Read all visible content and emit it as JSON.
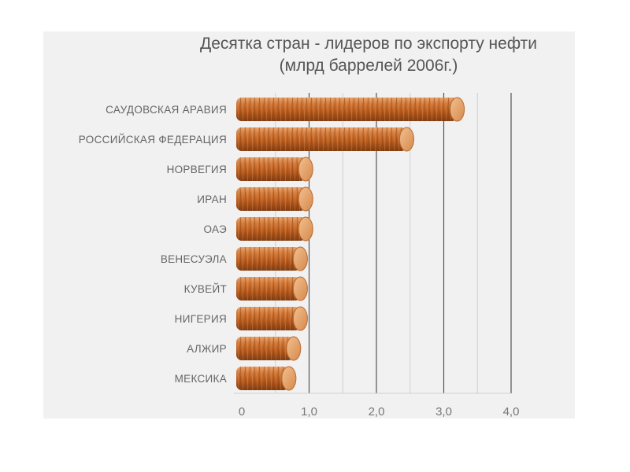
{
  "chart_data": {
    "type": "bar",
    "orientation": "horizontal",
    "title": "Десятка стран - лидеров по экспорту нефти",
    "subtitle": "(млрд баррелей 2006г.)",
    "categories": [
      "САУДОВСКАЯ АРАВИЯ",
      "РОССИЙСКАЯ ФЕДЕРАЦИЯ",
      "НОРВЕГИЯ",
      "ИРАН",
      "ОАЭ",
      "ВЕНЕСУЭЛА",
      "КУВЕЙТ",
      "НИГЕРИЯ",
      "АЛЖИР",
      "МЕКСИКА"
    ],
    "values": [
      3.2,
      2.45,
      0.95,
      0.95,
      0.95,
      0.87,
      0.87,
      0.87,
      0.77,
      0.7
    ],
    "xlim": [
      0,
      4
    ],
    "xticks": [
      0,
      1,
      2,
      3,
      4
    ],
    "xtick_labels": [
      "0",
      "1,0",
      "2,0",
      "3,0",
      "4,0"
    ],
    "grid": true,
    "bar_color": "#c8692a"
  }
}
